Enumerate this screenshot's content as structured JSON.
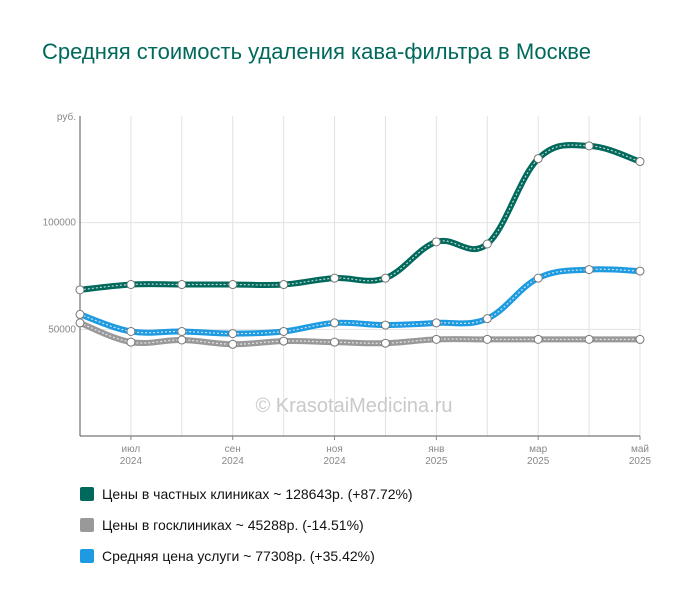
{
  "title": "Средняя стоимость удаления кава-фильтра в Москве",
  "watermark": "© KrasotaiMedicina.ru",
  "chart_data": {
    "type": "line",
    "title": "Средняя стоимость удаления кава-фильтра в Москве",
    "y_unit_label": "руб.",
    "ylim": [
      0,
      150000
    ],
    "y_ticks": [
      {
        "value": 50000,
        "label": "50000"
      },
      {
        "value": 100000,
        "label": "100000"
      }
    ],
    "x_ticks": [
      {
        "index": 1,
        "label": "июл",
        "year": "2024"
      },
      {
        "index": 3,
        "label": "сен",
        "year": "2024"
      },
      {
        "index": 5,
        "label": "ноя",
        "year": "2024"
      },
      {
        "index": 7,
        "label": "янв",
        "year": "2025"
      },
      {
        "index": 9,
        "label": "мар",
        "year": "2025"
      },
      {
        "index": 11,
        "label": "май",
        "year": "2025"
      }
    ],
    "grid": true,
    "legend_position": "bottom",
    "series": [
      {
        "name": "Цены в частных клиниках ~ 128643р. (+87.72%)",
        "color": "#00695c",
        "values": [
          68500,
          71000,
          71000,
          71000,
          71000,
          74000,
          74000,
          91000,
          90000,
          130000,
          136000,
          128643
        ]
      },
      {
        "name": "Цены в госклиниках ~ 45288р. (-14.51%)",
        "color": "#999999",
        "values": [
          53000,
          44000,
          45000,
          43000,
          44500,
          44000,
          43500,
          45300,
          45300,
          45300,
          45300,
          45288
        ]
      },
      {
        "name": "Средняя цена услуги ~ 77308р. (+35.42%)",
        "color": "#1e9be0",
        "values": [
          57000,
          49000,
          49000,
          48000,
          49000,
          53000,
          52000,
          53000,
          55000,
          74000,
          78000,
          77308
        ]
      }
    ]
  }
}
